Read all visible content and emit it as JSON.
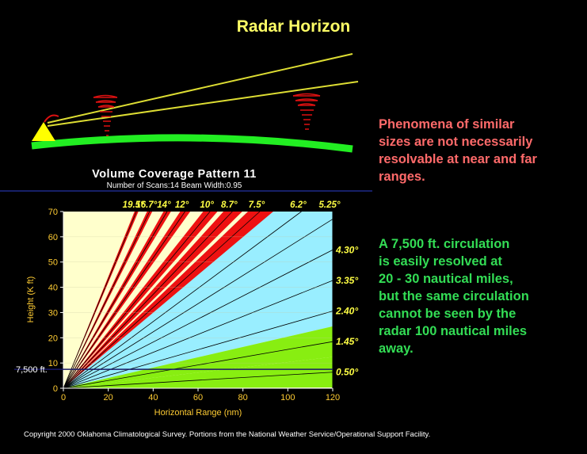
{
  "title": "Radar Horizon",
  "vcp": {
    "title": "Volume Coverage Pattern 11",
    "subtitle": "Number of Scans:14     Beam Width:0.95"
  },
  "notes": {
    "red": [
      "Phenomena of similar",
      "sizes are not necessarily",
      "resolvable at near and far",
      "ranges."
    ],
    "green": [
      "A 7,500 ft. circulation",
      "is easily resolved at",
      "20 - 30 nautical miles,",
      "but the same circulation",
      "cannot be seen by the",
      "radar 100 nautical miles",
      "away."
    ]
  },
  "copyright": "Copyright 2000 Oklahoma Climatological Survey.  Portions from the National Weather Service/Operational Support Facility.",
  "colors": {
    "title": "#ffff66",
    "red_text": "#ff6a6a",
    "green_text": "#33dd55",
    "ground": "#33ff33",
    "beam": "#dddd33",
    "radar": "#ffff00",
    "storm": "#dd1111",
    "chart_background": "#ffffcc",
    "red_band": "#ee1111",
    "cyan_band": "#99eeff",
    "green_band": "#88ee11"
  },
  "chart_data": {
    "type": "line",
    "xlabel": "Horizontal Range (nm)",
    "ylabel": "Height (K ft)",
    "xlim": [
      0,
      120
    ],
    "ylim": [
      0,
      70
    ],
    "x_ticks": [
      "0",
      "20",
      "40",
      "60",
      "80",
      "100",
      "120"
    ],
    "y_ticks": [
      "0",
      "10",
      "20",
      "30",
      "40",
      "50",
      "60",
      "70"
    ],
    "elevation_angles_top": [
      "19.5°",
      "16.7°",
      "14°",
      "12°",
      "10°",
      "8.7°",
      "7.5°",
      "6.2°",
      "5.25°"
    ],
    "elevation_angles_right": [
      "4.30°",
      "3.35°",
      "2.40°",
      "1.45°",
      "0.50°"
    ],
    "elevation_angles": [
      19.5,
      16.7,
      14,
      12,
      10,
      8.7,
      7.5,
      6.2,
      5.25,
      4.3,
      3.35,
      2.4,
      1.45,
      0.5
    ],
    "reference_line": {
      "label": "7,500 ft.",
      "height_kft": 7.5
    }
  }
}
